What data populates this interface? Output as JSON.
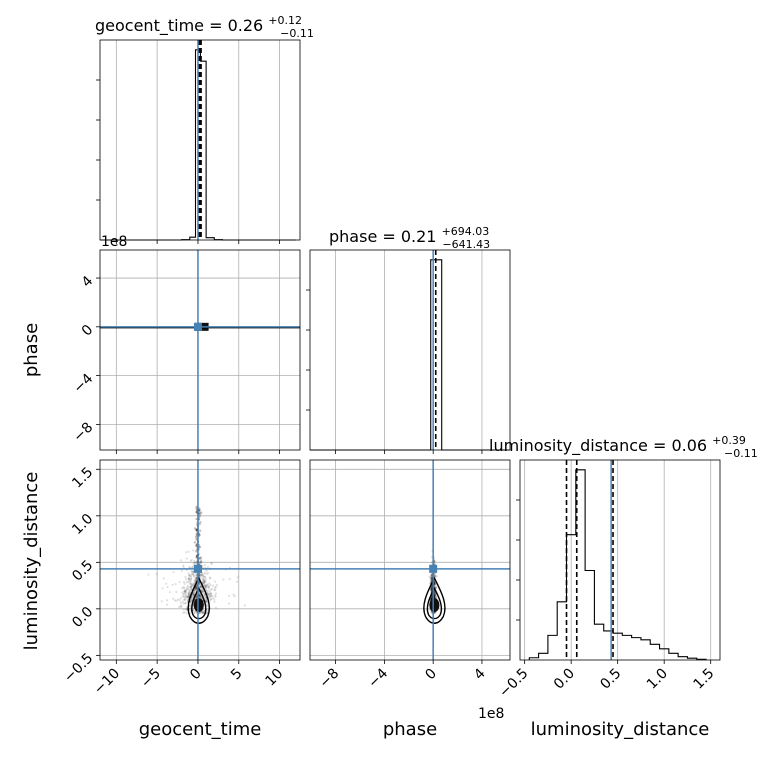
{
  "chart_data": {
    "type": "corner",
    "parameters": [
      "geocent_time",
      "phase",
      "luminosity_distance"
    ],
    "titles": {
      "geocent_time": {
        "prefix": "geocent_time = ",
        "median": "0.26",
        "plus": "+0.12",
        "minus": "−0.11"
      },
      "phase": {
        "prefix": "phase = ",
        "median": "0.21",
        "plus": "+694.03",
        "minus": "−641.43"
      },
      "luminosity_distance": {
        "prefix": "luminosity_distance = ",
        "median": "0.06",
        "plus": "+0.39",
        "minus": "−0.11"
      }
    },
    "scale_labels": {
      "geocent_time": "1e8",
      "phase": "1e8"
    },
    "axes": {
      "geocent_time": {
        "range": [
          -12,
          12.5
        ],
        "ticks": [
          -10,
          -5,
          0,
          5,
          10
        ],
        "tick_labels": [
          "−10",
          "−5",
          "0",
          "5",
          "10"
        ]
      },
      "phase": {
        "range": [
          -10.1,
          6.3
        ],
        "ticks": [
          -8,
          -4,
          0,
          4
        ],
        "tick_labels": [
          "−8",
          "−4",
          "0",
          "4"
        ]
      },
      "luminosity_distance": {
        "range": [
          -0.55,
          1.6
        ],
        "ticks": [
          -0.5,
          0.0,
          0.5,
          1.0,
          1.5
        ],
        "tick_labels": [
          "−0.5",
          "0.0",
          "0.5",
          "1.0",
          "1.5"
        ]
      }
    },
    "truths": {
      "geocent_time": 0,
      "phase": 0,
      "luminosity_distance": 0.43
    },
    "quantiles": {
      "geocent_time": [
        0.15,
        0.26,
        0.38
      ],
      "phase": [
        -641.43,
        0.21,
        694.03
      ],
      "luminosity_distance": [
        -0.05,
        0.06,
        0.45
      ]
    },
    "histograms": {
      "geocent_time": {
        "edges": [
          -12,
          -11,
          -10,
          -9,
          -8,
          -7,
          -6,
          -5,
          -4,
          -3,
          -2,
          -1,
          -0.3,
          0.3,
          1,
          2,
          3,
          4,
          5,
          6,
          7,
          8,
          9,
          10,
          11,
          12
        ],
        "counts": [
          0,
          0,
          0,
          0,
          0,
          0,
          0,
          0,
          0,
          0,
          0.2,
          1.5,
          100,
          94,
          1.2,
          0.2,
          0,
          0,
          0,
          0,
          0,
          0,
          0,
          0,
          0
        ]
      },
      "phase": {
        "edges": [
          -10.1,
          -9.2,
          -8.3,
          -7.4,
          -6.5,
          -5.6,
          -4.7,
          -3.8,
          -2.9,
          -2,
          -1.1,
          -0.2,
          0.7,
          1.6,
          2.5,
          3.4,
          4.3,
          5.2,
          6.3
        ],
        "counts": [
          0,
          0,
          0,
          0,
          0,
          0,
          0,
          0,
          0,
          0,
          0,
          98,
          0,
          0,
          0,
          0,
          0,
          0
        ]
      },
      "luminosity_distance": {
        "edges": [
          -0.45,
          -0.35,
          -0.25,
          -0.15,
          -0.05,
          0.05,
          0.15,
          0.25,
          0.35,
          0.45,
          0.55,
          0.65,
          0.75,
          0.85,
          0.95,
          1.05,
          1.15,
          1.25,
          1.35,
          1.45
        ],
        "counts": [
          1,
          3,
          11,
          26,
          56,
          85,
          40,
          16,
          13,
          12,
          11,
          10,
          9,
          7,
          5,
          3,
          1.5,
          0.8,
          0.3
        ]
      }
    },
    "grid": true
  }
}
